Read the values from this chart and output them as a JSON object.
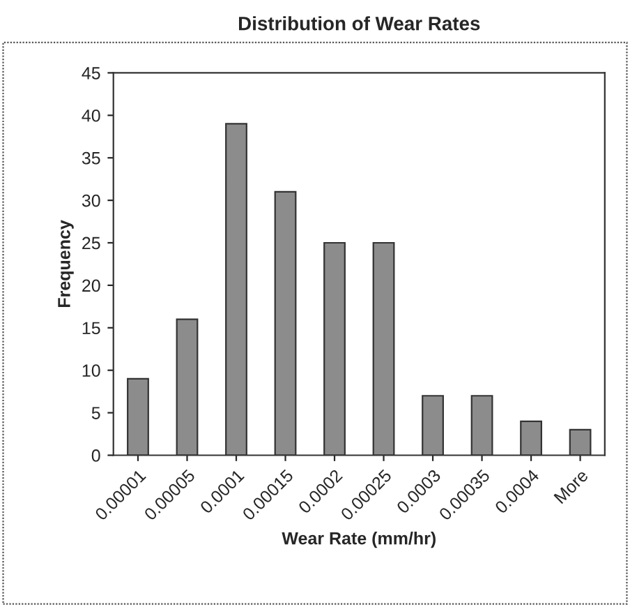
{
  "chart_data": {
    "type": "bar",
    "title": "Distribution of Wear Rates",
    "xlabel": "Wear Rate (mm/hr)",
    "ylabel": "Frequency",
    "categories": [
      "0.00001",
      "0.00005",
      "0.0001",
      "0.00015",
      "0.0002",
      "0.00025",
      "0.0003",
      "0.00035",
      "0.0004",
      "More"
    ],
    "values": [
      9,
      16,
      39,
      31,
      25,
      25,
      7,
      7,
      4,
      3
    ],
    "color": "#8c8c8c",
    "ylim": [
      0,
      45
    ],
    "yticks": [
      0,
      5,
      10,
      15,
      20,
      25,
      30,
      35,
      40,
      45
    ],
    "grid": false,
    "legend": false
  }
}
